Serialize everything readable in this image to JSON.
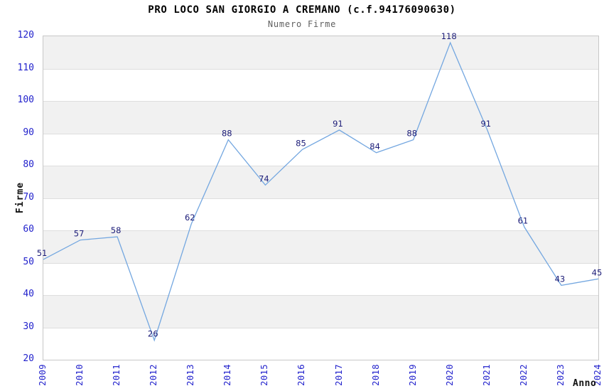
{
  "chart_data": {
    "type": "line",
    "title": "PRO LOCO SAN GIORGIO A CREMANO (c.f.94176090630)",
    "subtitle": "Numero Firme",
    "xlabel": "Anno",
    "ylabel": "Firme",
    "x": [
      2009,
      2010,
      2011,
      2012,
      2013,
      2014,
      2015,
      2016,
      2017,
      2018,
      2019,
      2020,
      2021,
      2022,
      2023,
      2024
    ],
    "series": [
      {
        "name": "Numero Firme",
        "values": [
          51,
          57,
          58,
          26,
          62,
          88,
          74,
          85,
          91,
          84,
          88,
          118,
          91,
          61,
          43,
          45
        ]
      }
    ],
    "ylim": [
      20,
      120
    ],
    "ytick_step": 10,
    "yticks": [
      20,
      30,
      40,
      50,
      60,
      70,
      80,
      90,
      100,
      110,
      120
    ],
    "grid": "alternating-horizontal-bands",
    "legend": "none",
    "colors": {
      "line": "#74a7e0",
      "tick_label": "#2222cc",
      "data_label": "#1c1c78",
      "band_gray": "#f1f1f1",
      "band_white": "#ffffff",
      "band_edge": "#dedede",
      "plot_border": "#c8c8c8",
      "title": "#000000",
      "subtitle": "#5f5f5f",
      "axis_label": "#111111"
    }
  }
}
